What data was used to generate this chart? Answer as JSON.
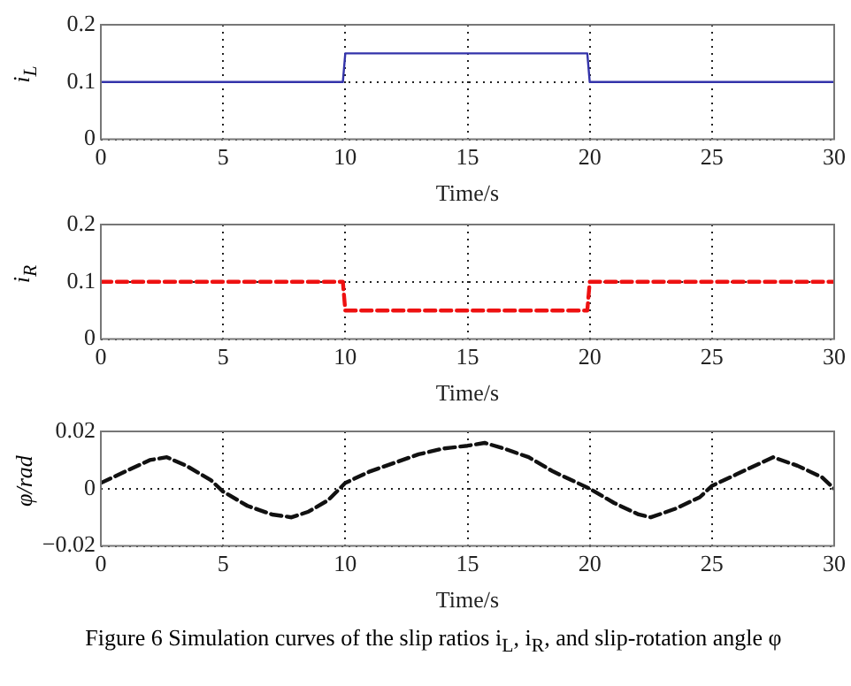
{
  "chart_data": [
    {
      "type": "line",
      "ylabel": "i$_{L}$",
      "xlabel": "Time/s",
      "x": [
        0,
        2,
        4,
        6,
        8,
        9.9,
        10,
        12,
        14,
        16,
        18,
        19.9,
        20,
        22,
        24,
        26,
        28,
        30
      ],
      "series": [
        {
          "color": "#3333aa",
          "values": [
            0.1,
            0.1,
            0.1,
            0.1,
            0.1,
            0.1,
            0.15,
            0.15,
            0.15,
            0.15,
            0.15,
            0.15,
            0.1,
            0.1,
            0.1,
            0.1,
            0.1,
            0.1
          ]
        }
      ],
      "xlim": [
        0,
        30
      ],
      "xticks": [
        0,
        5,
        10,
        15,
        20,
        25,
        30
      ],
      "ylim": [
        0,
        0.2
      ],
      "yticks": [
        0,
        0.1,
        0.2
      ],
      "grid": true,
      "legend": false,
      "marker": "none",
      "line_style": "solid"
    },
    {
      "type": "line",
      "ylabel": "i$_{R}$",
      "xlabel": "Time/s",
      "x": [
        0,
        2,
        4,
        6,
        8,
        9.9,
        10,
        12,
        14,
        16,
        18,
        19.9,
        20,
        22,
        24,
        26,
        28,
        30
      ],
      "series": [
        {
          "color": "#ee1111",
          "values": [
            0.1,
            0.1,
            0.1,
            0.1,
            0.1,
            0.1,
            0.05,
            0.05,
            0.05,
            0.05,
            0.05,
            0.05,
            0.1,
            0.1,
            0.1,
            0.1,
            0.1,
            0.1
          ]
        }
      ],
      "xlim": [
        0,
        30
      ],
      "xticks": [
        0,
        5,
        10,
        15,
        20,
        25,
        30
      ],
      "ylim": [
        0,
        0.2
      ],
      "yticks": [
        0,
        0.1,
        0.2
      ],
      "grid": true,
      "legend": false,
      "marker": "none",
      "line_style": "dashed"
    },
    {
      "type": "line",
      "ylabel": "φ/rad",
      "xlabel": "Time/s",
      "x": [
        0,
        1,
        2,
        2.7,
        3.5,
        4.5,
        5,
        6,
        7,
        7.8,
        8.5,
        9.3,
        10,
        11,
        12,
        13,
        14,
        15,
        15.7,
        16.5,
        17.5,
        18.5,
        19.5,
        20,
        21,
        22,
        22.5,
        23.5,
        24.5,
        25,
        26,
        27,
        27.5,
        28.5,
        29.5,
        30
      ],
      "series": [
        {
          "color": "#111111",
          "values": [
            0.002,
            0.006,
            0.01,
            0.011,
            0.008,
            0.003,
            -0.001,
            -0.006,
            -0.009,
            -0.01,
            -0.008,
            -0.004,
            0.002,
            0.006,
            0.009,
            0.012,
            0.014,
            0.015,
            0.016,
            0.014,
            0.011,
            0.006,
            0.002,
            0,
            -0.005,
            -0.009,
            -0.01,
            -0.007,
            -0.003,
            0.001,
            0.005,
            0.009,
            0.011,
            0.008,
            0.004,
            0
          ]
        }
      ],
      "xlim": [
        0,
        30
      ],
      "xticks": [
        0,
        5,
        10,
        15,
        20,
        25,
        30
      ],
      "ylim": [
        -0.02,
        0.02
      ],
      "yticks": [
        -0.02,
        0,
        0.02
      ],
      "grid": true,
      "legend": false,
      "marker": "none",
      "line_style": "dashed",
      "annotations": [
        "Figure 6    Simulation curves of the slip ratios i$_{L}$, i$_{R}$, and slip-rotation angle φ"
      ]
    }
  ]
}
